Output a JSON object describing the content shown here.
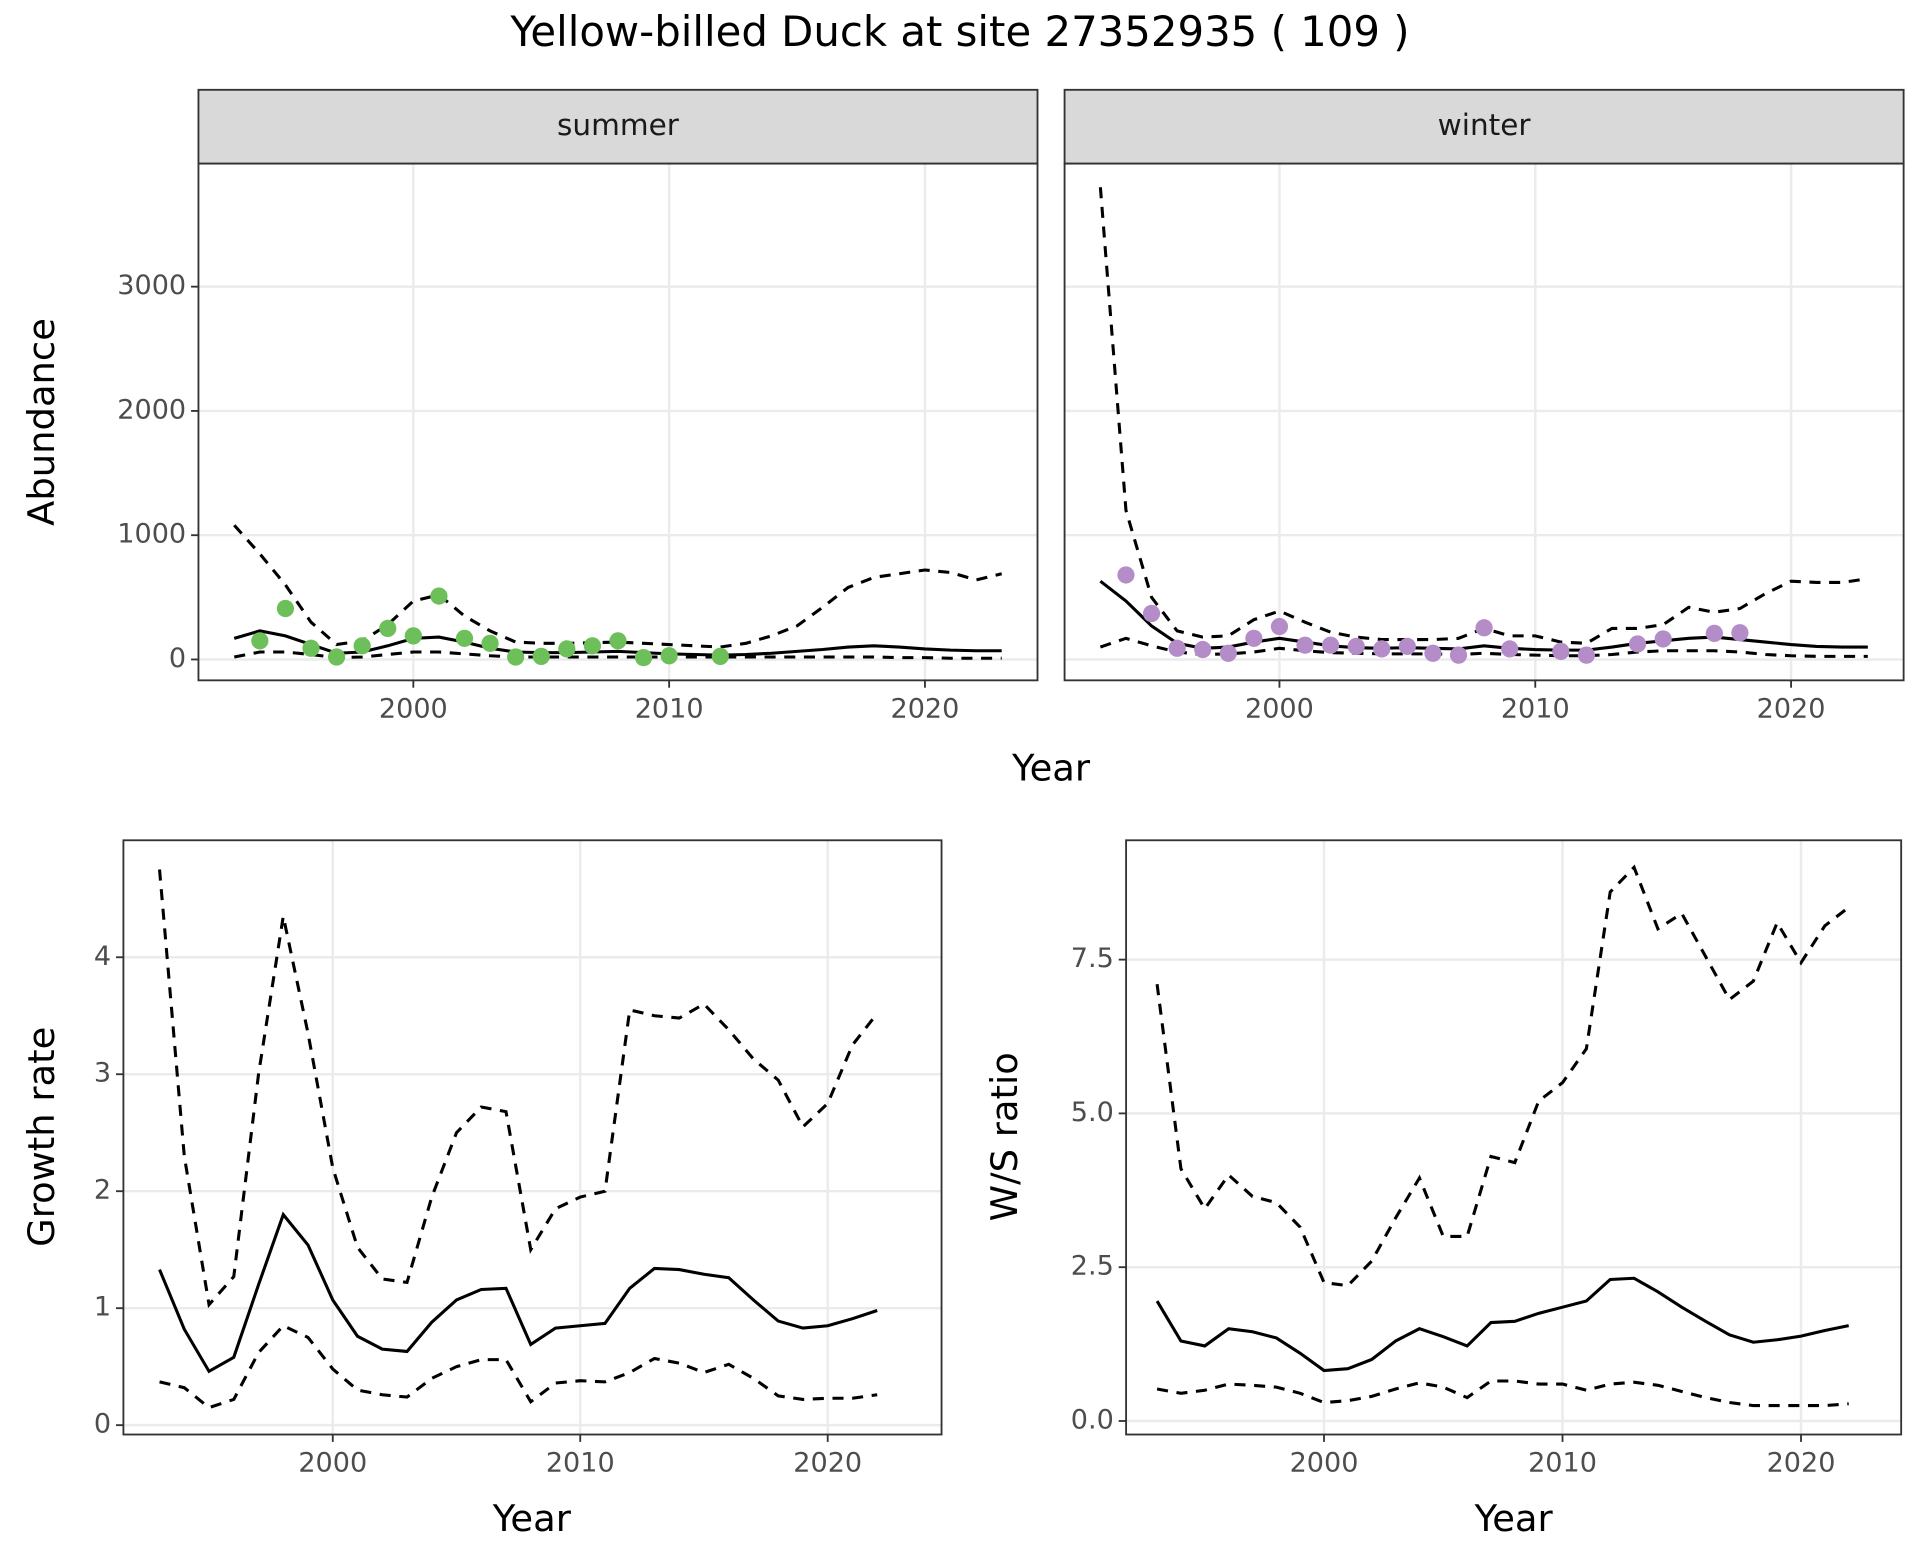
{
  "title": "Yellow-billed Duck at site 27352935 ( 109 )",
  "chart_data": [
    {
      "type": "line",
      "xlabel": "Year",
      "ylabel": "Abundance",
      "xlim": [
        1991.6,
        2024.4
      ],
      "ylim": [
        -168,
        3990
      ],
      "xticks": [
        2000,
        2010,
        2020
      ],
      "yticks": [
        0,
        1000,
        2000,
        3000
      ],
      "grid": true,
      "line_color": "#000000",
      "facets": [
        {
          "label": "summer",
          "point_color": "#6dbf5a",
          "x": [
            1993,
            1994,
            1995,
            1996,
            1997,
            1998,
            1999,
            2000,
            2001,
            2002,
            2003,
            2004,
            2005,
            2006,
            2007,
            2008,
            2009,
            2010,
            2011,
            2012,
            2013,
            2014,
            2015,
            2016,
            2017,
            2018,
            2019,
            2020,
            2021,
            2022,
            2023
          ],
          "fit": [
            170,
            230,
            190,
            120,
            50,
            60,
            110,
            170,
            180,
            140,
            90,
            60,
            55,
            55,
            60,
            65,
            55,
            45,
            40,
            35,
            40,
            50,
            65,
            80,
            100,
            110,
            100,
            85,
            75,
            70,
            70
          ],
          "upper": [
            1080,
            850,
            600,
            300,
            120,
            150,
            280,
            470,
            520,
            350,
            230,
            140,
            130,
            130,
            135,
            140,
            130,
            120,
            110,
            100,
            130,
            190,
            270,
            420,
            580,
            660,
            690,
            720,
            700,
            640,
            690
          ],
          "lower": [
            20,
            60,
            60,
            40,
            15,
            20,
            40,
            60,
            60,
            45,
            30,
            20,
            20,
            20,
            20,
            20,
            20,
            20,
            20,
            20,
            20,
            20,
            20,
            20,
            20,
            20,
            15,
            15,
            10,
            10,
            10
          ],
          "obs_x": [
            1994,
            1995,
            1996,
            1997,
            1998,
            1999,
            2000,
            2001,
            2002,
            2003,
            2004,
            2005,
            2006,
            2007,
            2008,
            2009,
            2010,
            2012
          ],
          "obs_values": [
            150,
            410,
            90,
            20,
            110,
            250,
            190,
            510,
            170,
            130,
            20,
            25,
            85,
            110,
            150,
            15,
            30,
            25
          ]
        },
        {
          "label": "winter",
          "point_color": "#b48cc8",
          "x": [
            1993,
            1994,
            1995,
            1996,
            1997,
            1998,
            1999,
            2000,
            2001,
            2002,
            2003,
            2004,
            2005,
            2006,
            2007,
            2008,
            2009,
            2010,
            2011,
            2012,
            2013,
            2014,
            2015,
            2016,
            2017,
            2018,
            2019,
            2020,
            2021,
            2022,
            2023
          ],
          "fit": [
            630,
            470,
            270,
            130,
            90,
            100,
            140,
            170,
            140,
            110,
            95,
            90,
            95,
            90,
            85,
            110,
            90,
            80,
            75,
            75,
            100,
            130,
            150,
            170,
            180,
            160,
            140,
            120,
            105,
            100,
            100
          ],
          "upper": [
            3800,
            1200,
            500,
            230,
            180,
            190,
            320,
            390,
            300,
            220,
            180,
            160,
            160,
            160,
            170,
            250,
            190,
            190,
            140,
            130,
            250,
            250,
            280,
            420,
            380,
            410,
            530,
            630,
            620,
            620,
            650
          ],
          "lower": [
            100,
            170,
            110,
            60,
            40,
            45,
            60,
            90,
            70,
            55,
            50,
            45,
            45,
            45,
            40,
            50,
            40,
            35,
            30,
            30,
            40,
            60,
            70,
            70,
            70,
            60,
            40,
            30,
            25,
            25,
            25
          ],
          "obs_x": [
            1994,
            1995,
            1996,
            1997,
            1998,
            1999,
            2000,
            2001,
            2002,
            2003,
            2004,
            2005,
            2006,
            2007,
            2008,
            2009,
            2011,
            2012,
            2014,
            2015,
            2017,
            2018
          ],
          "obs_values": [
            680,
            370,
            90,
            80,
            50,
            170,
            265,
            115,
            115,
            105,
            85,
            105,
            50,
            35,
            255,
            85,
            65,
            35,
            125,
            165,
            210,
            215
          ]
        }
      ]
    },
    {
      "type": "line",
      "xlabel": "Year",
      "ylabel": "Growth rate",
      "xlim": [
        1991.54,
        2024.6
      ],
      "ylim": [
        -0.08,
        5.0
      ],
      "xticks": [
        2000,
        2010,
        2020
      ],
      "yticks": [
        0,
        1,
        2,
        3,
        4
      ],
      "grid": true,
      "line_color": "#000000",
      "x": [
        1993,
        1994,
        1995,
        1996,
        1997,
        1998,
        1999,
        2000,
        2001,
        2002,
        2003,
        2004,
        2005,
        2006,
        2007,
        2008,
        2009,
        2010,
        2011,
        2012,
        2013,
        2014,
        2015,
        2016,
        2017,
        2018,
        2019,
        2020,
        2021,
        2022
      ],
      "fit": [
        1.33,
        0.82,
        0.46,
        0.58,
        1.2,
        1.8,
        1.54,
        1.07,
        0.76,
        0.65,
        0.63,
        0.88,
        1.07,
        1.16,
        1.17,
        0.69,
        0.83,
        0.85,
        0.87,
        1.17,
        1.34,
        1.33,
        1.29,
        1.26,
        1.07,
        0.89,
        0.83,
        0.85,
        0.91,
        0.98
      ],
      "upper": [
        4.75,
        2.3,
        1.03,
        1.27,
        3.0,
        4.35,
        3.35,
        2.2,
        1.52,
        1.25,
        1.22,
        1.95,
        2.5,
        2.72,
        2.68,
        1.5,
        1.85,
        1.95,
        2.0,
        3.55,
        3.5,
        3.48,
        3.6,
        3.38,
        3.13,
        2.95,
        2.55,
        2.75,
        3.25,
        3.52
      ],
      "lower": [
        0.37,
        0.32,
        0.15,
        0.22,
        0.62,
        0.85,
        0.75,
        0.48,
        0.3,
        0.26,
        0.24,
        0.4,
        0.5,
        0.56,
        0.56,
        0.2,
        0.36,
        0.38,
        0.37,
        0.45,
        0.57,
        0.53,
        0.45,
        0.52,
        0.4,
        0.25,
        0.22,
        0.23,
        0.23,
        0.26
      ]
    },
    {
      "type": "line",
      "xlabel": "Year",
      "ylabel": "W/S ratio",
      "xlim": [
        1991.7,
        2024.2
      ],
      "ylim": [
        -0.22,
        9.44
      ],
      "xticks": [
        2000,
        2010,
        2020
      ],
      "yticks": [
        {
          "value": 0,
          "label": "0.0"
        },
        2.5,
        {
          "value": 5,
          "label": "5.0"
        },
        7.5
      ],
      "grid": true,
      "line_color": "#000000",
      "x": [
        1993,
        1994,
        1995,
        1996,
        1997,
        1998,
        1999,
        2000,
        2001,
        2002,
        2003,
        2004,
        2005,
        2006,
        2007,
        2008,
        2009,
        2010,
        2011,
        2012,
        2013,
        2014,
        2015,
        2016,
        2017,
        2018,
        2019,
        2020,
        2021,
        2022
      ],
      "fit": [
        1.95,
        1.3,
        1.22,
        1.5,
        1.45,
        1.35,
        1.1,
        0.82,
        0.85,
        1.0,
        1.3,
        1.5,
        1.37,
        1.22,
        1.6,
        1.62,
        1.75,
        1.85,
        1.95,
        2.3,
        2.32,
        2.1,
        1.85,
        1.62,
        1.4,
        1.28,
        1.32,
        1.38,
        1.47,
        1.55
      ],
      "upper": [
        7.1,
        4.1,
        3.45,
        4.0,
        3.65,
        3.55,
        3.15,
        2.25,
        2.2,
        2.6,
        3.3,
        3.95,
        3.0,
        3.0,
        4.3,
        4.2,
        5.2,
        5.5,
        6.05,
        8.6,
        9.0,
        8.0,
        8.25,
        7.55,
        6.85,
        7.15,
        8.1,
        7.45,
        8.05,
        8.35
      ],
      "lower": [
        0.52,
        0.45,
        0.5,
        0.6,
        0.58,
        0.55,
        0.45,
        0.3,
        0.33,
        0.4,
        0.52,
        0.62,
        0.55,
        0.38,
        0.65,
        0.65,
        0.6,
        0.6,
        0.5,
        0.6,
        0.63,
        0.58,
        0.48,
        0.38,
        0.3,
        0.25,
        0.25,
        0.25,
        0.25,
        0.28
      ]
    }
  ]
}
